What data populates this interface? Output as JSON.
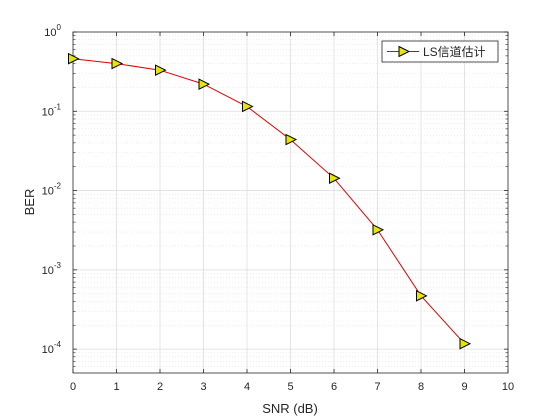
{
  "chart_data": {
    "type": "line",
    "xlabel": "SNR (dB)",
    "ylabel": "BER",
    "xlim": [
      0,
      10
    ],
    "ylim": [
      5e-05,
      1
    ],
    "yscale": "log",
    "grid": true,
    "minor_grid": true,
    "legend_position": "top-right",
    "x_ticks": [
      "0",
      "1",
      "2",
      "3",
      "4",
      "5",
      "6",
      "7",
      "8",
      "9",
      "10"
    ],
    "y_ticks": [
      {
        "value": 1,
        "base": "10",
        "exp": "0"
      },
      {
        "value": 0.1,
        "base": "10",
        "exp": "-1"
      },
      {
        "value": 0.01,
        "base": "10",
        "exp": "-2"
      },
      {
        "value": 0.001,
        "base": "10",
        "exp": "-3"
      },
      {
        "value": 0.0001,
        "base": "10",
        "exp": "-4"
      }
    ],
    "series": [
      {
        "name": "LS信道估计",
        "color": "#e00000",
        "marker": "triangle-right",
        "marker_fill": "#e6e600",
        "x": [
          0,
          1,
          2,
          3,
          4,
          5,
          6,
          7,
          8,
          9
        ],
        "y": [
          0.46,
          0.4,
          0.33,
          0.22,
          0.115,
          0.044,
          0.0143,
          0.0032,
          0.00047,
          0.000117
        ]
      }
    ]
  }
}
